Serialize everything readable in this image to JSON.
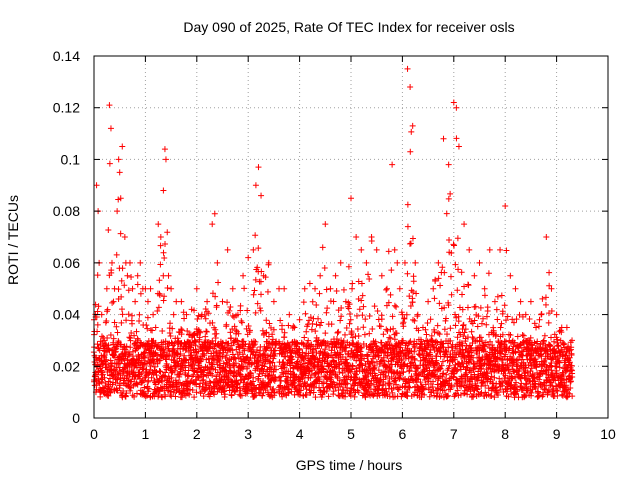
{
  "chart_data": {
    "type": "scatter",
    "title": "Day 090 of 2025, Rate Of TEC Index for receiver osls",
    "xlabel": "GPS time / hours",
    "ylabel": "ROTI / TECUs",
    "xlim": [
      0,
      10
    ],
    "ylim": [
      0,
      0.14
    ],
    "xticks": [
      0,
      1,
      2,
      3,
      4,
      5,
      6,
      7,
      8,
      9,
      10
    ],
    "xtick_labels": [
      "0",
      "1",
      "2",
      "3",
      "4",
      "5",
      "6",
      "7",
      "8",
      "9",
      "10"
    ],
    "yticks": [
      0,
      0.02,
      0.04,
      0.06,
      0.08,
      0.1,
      0.12,
      0.14
    ],
    "ytick_labels": [
      "0",
      "0.02",
      "0.04",
      "0.06",
      "0.08",
      "0.1",
      "0.12",
      "0.14"
    ],
    "grid": true,
    "marker": "+",
    "marker_color": "#ff0000",
    "data_gap": [
      3.55,
      3.6
    ],
    "data_gap2": [
      5.9,
      6.25
    ],
    "series": [
      {
        "name": "ROTI",
        "x": [
          0.0,
          0.05,
          0.08,
          0.1,
          0.15,
          0.2,
          0.25,
          0.3,
          0.33,
          0.35,
          0.38,
          0.4,
          0.45,
          0.48,
          0.5,
          0.52,
          0.55,
          0.6,
          0.62,
          0.65,
          0.7,
          0.75,
          0.8,
          0.85,
          0.9,
          0.95,
          1.0,
          1.05,
          1.1,
          1.15,
          1.2,
          1.25,
          1.3,
          1.35,
          1.38,
          1.4,
          1.45,
          1.5,
          1.55,
          1.6,
          1.7,
          1.8,
          1.9,
          2.0,
          2.1,
          2.2,
          2.3,
          2.35,
          2.4,
          2.5,
          2.6,
          2.7,
          2.8,
          2.9,
          3.0,
          3.1,
          3.15,
          3.2,
          3.25,
          3.3,
          3.4,
          3.5,
          3.6,
          3.7,
          3.8,
          3.9,
          4.0,
          4.1,
          4.2,
          4.3,
          4.4,
          4.45,
          4.5,
          4.6,
          4.7,
          4.8,
          4.9,
          5.0,
          5.1,
          5.2,
          5.3,
          5.4,
          5.5,
          5.6,
          5.7,
          5.8,
          5.85,
          5.9,
          5.95,
          6.0,
          6.05,
          6.1,
          6.15,
          6.2,
          6.25,
          6.3,
          6.4,
          6.5,
          6.6,
          6.7,
          6.8,
          6.9,
          7.0,
          7.05,
          7.1,
          7.2,
          7.3,
          7.4,
          7.5,
          7.6,
          7.7,
          7.8,
          7.9,
          8.0,
          8.1,
          8.2,
          8.3,
          8.4,
          8.5,
          8.6,
          8.7,
          8.8,
          8.9,
          9.0,
          9.1,
          9.2,
          9.3
        ],
        "y": [
          0.038,
          0.09,
          0.08,
          0.06,
          0.04,
          0.03,
          0.05,
          0.121,
          0.112,
          0.06,
          0.045,
          0.05,
          0.08,
          0.1,
          0.095,
          0.085,
          0.105,
          0.07,
          0.06,
          0.055,
          0.06,
          0.05,
          0.045,
          0.055,
          0.06,
          0.05,
          0.05,
          0.045,
          0.05,
          0.04,
          0.035,
          0.075,
          0.07,
          0.088,
          0.104,
          0.1,
          0.055,
          0.05,
          0.04,
          0.045,
          0.045,
          0.04,
          0.042,
          0.05,
          0.04,
          0.045,
          0.075,
          0.079,
          0.06,
          0.045,
          0.065,
          0.05,
          0.04,
          0.055,
          0.062,
          0.065,
          0.09,
          0.097,
          0.086,
          0.055,
          0.06,
          0.045,
          0.05,
          0.05,
          0.04,
          0.035,
          0.038,
          0.05,
          0.052,
          0.05,
          0.055,
          0.066,
          0.075,
          0.05,
          0.055,
          0.06,
          0.045,
          0.085,
          0.07,
          0.065,
          0.06,
          0.07,
          0.065,
          0.055,
          0.05,
          0.098,
          0.065,
          0.06,
          0.05,
          0.04,
          0.06,
          0.135,
          0.128,
          0.113,
          0.06,
          0.04,
          0.035,
          0.045,
          0.05,
          0.06,
          0.108,
          0.098,
          0.122,
          0.12,
          0.105,
          0.075,
          0.065,
          0.055,
          0.06,
          0.05,
          0.065,
          0.045,
          0.065,
          0.082,
          0.055,
          0.05,
          0.045,
          0.04,
          0.045,
          0.035,
          0.04,
          0.07,
          0.05,
          0.04,
          0.035,
          0.035,
          0.03
        ]
      }
    ]
  }
}
